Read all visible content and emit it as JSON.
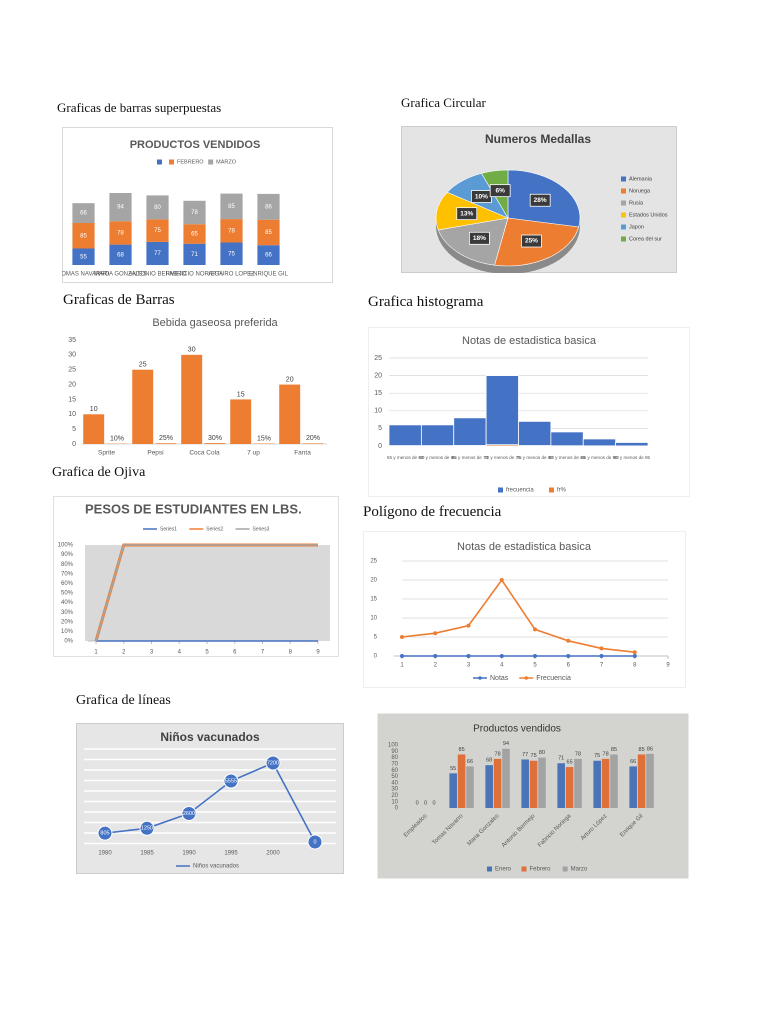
{
  "headings": [
    "Graficas de barras superpuestas",
    "Grafica Circular",
    "Graficas de Barras",
    "Grafica histograma",
    "Grafica de Ojiva",
    "Polígono de frecuencia",
    "Grafica de líneas"
  ],
  "chart_data": [
    {
      "type": "bar",
      "stacked": true,
      "data_labels": true,
      "title": "PRODUCTOS VENDIDOS",
      "categories": [
        "TOMAS NAVARRO",
        "MARIA GONZALES",
        "ANTONIO BERMEJO",
        "FABRICIO NORIEGA",
        "ARTURO LOPEZ",
        "ENRIQUE GIL"
      ],
      "series": [
        {
          "color": "#4472c4",
          "values": [
            55,
            68,
            77,
            71,
            75,
            66
          ]
        },
        {
          "name": "FEBRERO",
          "color": "#ed7d31",
          "values": [
            85,
            78,
            75,
            65,
            78,
            85
          ]
        },
        {
          "name": "MARZO",
          "color": "#a5a5a5",
          "values": [
            66,
            94,
            80,
            78,
            85,
            86
          ]
        }
      ]
    },
    {
      "type": "pie",
      "title": "Numeros Medallas",
      "categories": [
        "Alemania",
        "Noruega",
        "Rusia",
        "Estados Unidos",
        "Japon",
        "Corea del sur"
      ],
      "values": [
        28,
        25,
        18,
        13,
        10,
        6
      ],
      "value_labels": [
        "28%",
        "25%",
        "18%",
        "13%",
        "10%",
        "6%"
      ],
      "colors": [
        "#4472c4",
        "#ed7d31",
        "#a5a5a5",
        "#ffc000",
        "#5b9bd5",
        "#70ad47"
      ]
    },
    {
      "type": "bar",
      "data_labels": true,
      "title": "Bebida gaseosa preferida",
      "categories": [
        "Sprite",
        "Pepsi",
        "Coca Cola",
        "7 up",
        "Fanta"
      ],
      "series": [
        {
          "color": "#ed7d31",
          "values": [
            10,
            25,
            30,
            15,
            20
          ]
        },
        {
          "color": "#ed7d31",
          "values": [
            0.1,
            0.25,
            0.3,
            0.15,
            0.2
          ],
          "value_labels": [
            "10%",
            "25%",
            "30%",
            "15%",
            "20%"
          ]
        }
      ],
      "ylim": [
        0,
        35
      ],
      "yticks": [
        0,
        5,
        10,
        15,
        20,
        25,
        30,
        35
      ],
      "grid": false
    },
    {
      "type": "histogram",
      "title": "Notas de estadistica basica",
      "categories": [
        "55 y menos de 60",
        "60 y menos de 65",
        "65 y menos de 70",
        "70 y menos de 75",
        "75 y menos de 80",
        "80 y menos de 85",
        "85 y menos de 90",
        "90 y menos de 95"
      ],
      "series": [
        {
          "name": "frecuencia",
          "color": "#4472c4",
          "values": [
            6,
            6,
            8,
            20,
            7,
            4,
            2,
            1
          ]
        },
        {
          "name": "fr%",
          "color": "#ed7d31",
          "values": [
            0.11,
            0.11,
            0.15,
            0.37,
            0.13,
            0.07,
            0.04,
            0.02
          ]
        }
      ],
      "ylim": [
        0,
        25
      ],
      "yticks": [
        0,
        5,
        10,
        15,
        20,
        25
      ],
      "grid": true
    },
    {
      "type": "line",
      "title": "PESOS DE ESTUDIANTES EN LBS.",
      "x": [
        1,
        2,
        3,
        4,
        5,
        6,
        7,
        8,
        9
      ],
      "series": [
        {
          "name": "Series1",
          "color": "#4472c4",
          "values": [
            0,
            0,
            0,
            0,
            0,
            0,
            0,
            0,
            0
          ]
        },
        {
          "name": "Series2",
          "color": "#ed7d31",
          "values": [
            0,
            100,
            100,
            100,
            100,
            100,
            100,
            100,
            100
          ]
        },
        {
          "name": "Series3",
          "color": "#a5a5a5",
          "values": [
            0,
            100,
            100,
            100,
            100,
            100,
            100,
            100,
            100
          ]
        }
      ],
      "xlim": [
        1,
        9
      ],
      "xticks": [
        1,
        2,
        3,
        4,
        5,
        6,
        7,
        8,
        9
      ],
      "ylim": [
        0,
        100
      ],
      "yticks": [
        {
          "value": 0,
          "label": "0%"
        },
        {
          "value": 10,
          "label": "10%"
        },
        {
          "value": 20,
          "label": "20%"
        },
        {
          "value": 30,
          "label": "30%"
        },
        {
          "value": 40,
          "label": "40%"
        },
        {
          "value": 50,
          "label": "50%"
        },
        {
          "value": 60,
          "label": "60%"
        },
        {
          "value": 70,
          "label": "70%"
        },
        {
          "value": 80,
          "label": "80%"
        },
        {
          "value": 90,
          "label": "90%"
        },
        {
          "value": 100,
          "label": "100%"
        }
      ],
      "grid": false
    },
    {
      "type": "line",
      "markers": true,
      "title": "Notas de estadistica basica",
      "x": [
        1,
        2,
        3,
        4,
        5,
        6,
        7,
        8
      ],
      "series": [
        {
          "name": "Notas",
          "color": "#4472c4",
          "values": [
            0,
            0,
            0,
            0,
            0,
            0,
            0,
            0
          ]
        },
        {
          "name": "Frecuencia",
          "color": "#ed7d31",
          "values": [
            5,
            6,
            8,
            20,
            7,
            4,
            2,
            1
          ]
        }
      ],
      "xlim": [
        1,
        9
      ],
      "xticks": [
        1,
        2,
        3,
        4,
        5,
        6,
        7,
        8,
        9
      ],
      "ylim": [
        0,
        25
      ],
      "yticks": [
        0,
        5,
        10,
        15,
        20,
        25
      ],
      "grid": true
    },
    {
      "type": "line",
      "data_labels": true,
      "title": "Niños vacunados",
      "categories": [
        "1980",
        "1985",
        "1990",
        "1995",
        "2000",
        null
      ],
      "series": [
        {
          "name": "Niños vacunados",
          "color": "#4472c4",
          "values": [
            805,
            1250,
            2600,
            5555,
            7200,
            0
          ]
        }
      ]
    },
    {
      "type": "bar",
      "data_labels": true,
      "title": "Productos vendidos",
      "categories": [
        "Empleados",
        "Tomas Navarro",
        "Maria Gonzales",
        "Antonio Bermejo",
        "Fabricio Noriega",
        "Arturo López",
        "Enrique Gil"
      ],
      "series": [
        {
          "name": "Enero",
          "color": "#4a74b8",
          "values": [
            0,
            55,
            68,
            77,
            71,
            75,
            66
          ]
        },
        {
          "name": "Febrero",
          "color": "#e0703a",
          "values": [
            0,
            85,
            78,
            75,
            65,
            78,
            85
          ]
        },
        {
          "name": "Marzo",
          "color": "#a3a3a3",
          "values": [
            0,
            66,
            94,
            80,
            78,
            85,
            86
          ]
        }
      ],
      "ylim": [
        0,
        100
      ],
      "yticks": [
        0,
        10,
        20,
        30,
        40,
        50,
        60,
        70,
        80,
        90,
        100
      ],
      "grid": false
    }
  ]
}
